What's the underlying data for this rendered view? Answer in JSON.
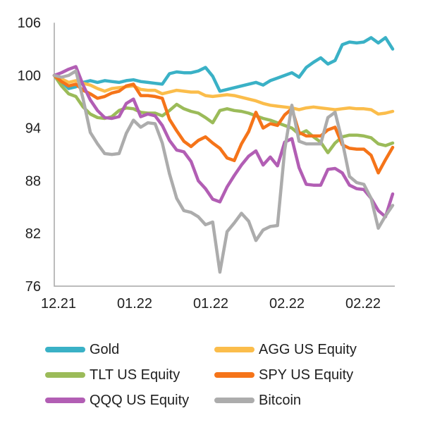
{
  "chart_data": {
    "type": "line",
    "title": "",
    "xlabel": "",
    "ylabel": "",
    "grid": false,
    "legend_position": "bottom",
    "y_axis": {
      "min": 76,
      "max": 106,
      "ticks": [
        106,
        100,
        94,
        88,
        82,
        76
      ]
    },
    "x_axis": {
      "tick_labels": [
        "12.21",
        "01.22",
        "01.22",
        "02.22",
        "02.22"
      ]
    },
    "series": [
      {
        "name": "Gold",
        "color": "#3ab1c6",
        "values": [
          100,
          99.3,
          98.5,
          98.7,
          99.2,
          99.4,
          99.2,
          99.4,
          99.3,
          99.2,
          99.4,
          99.5,
          99.3,
          99.2,
          99.1,
          99.0,
          100.2,
          100.4,
          100.3,
          100.3,
          100.5,
          100.9,
          99.9,
          98.2,
          98.4,
          98.6,
          98.8,
          99.0,
          99.2,
          98.9,
          99.4,
          99.7,
          100.0,
          100.3,
          99.8,
          100.9,
          101.5,
          102.0,
          101.3,
          101.7,
          103.5,
          103.8,
          103.7,
          103.8,
          104.3,
          103.7,
          104.3,
          103.0
        ]
      },
      {
        "name": "AGG US Equity",
        "color": "#fbbd4b",
        "values": [
          100,
          99.6,
          99.2,
          99.4,
          99.1,
          98.9,
          98.5,
          98.2,
          98.5,
          98.6,
          98.7,
          98.8,
          98.4,
          98.3,
          98.3,
          97.9,
          98.1,
          98.3,
          98.2,
          98.1,
          98.1,
          97.7,
          97.6,
          97.7,
          97.8,
          97.7,
          97.5,
          97.3,
          97.1,
          96.8,
          96.6,
          96.5,
          96.4,
          96.3,
          96.1,
          96.3,
          96.4,
          96.3,
          96.2,
          96.1,
          96.2,
          96.3,
          96.2,
          96.2,
          96.1,
          95.6,
          95.7,
          95.9
        ]
      },
      {
        "name": "TLT US Equity",
        "color": "#9bbb59",
        "values": [
          100,
          98.8,
          97.9,
          97.6,
          96.4,
          95.6,
          95.2,
          95.1,
          95.3,
          96.0,
          96.3,
          96.2,
          95.8,
          95.7,
          95.7,
          95.4,
          96.0,
          96.7,
          96.2,
          95.9,
          95.7,
          95.2,
          94.6,
          96.0,
          96.2,
          96.0,
          95.9,
          95.7,
          95.4,
          95.1,
          94.9,
          94.6,
          94.3,
          94.0,
          93.3,
          93.7,
          93.0,
          92.4,
          91.2,
          92.3,
          93.0,
          93.2,
          93.2,
          93.1,
          92.9,
          92.2,
          92.0,
          92.3
        ]
      },
      {
        "name": "SPY US Equity",
        "color": "#f57419",
        "values": [
          100,
          99.3,
          98.8,
          99.0,
          98.3,
          97.9,
          97.4,
          97.6,
          98.0,
          98.2,
          98.8,
          99.0,
          97.7,
          97.7,
          97.6,
          97.4,
          95.0,
          93.7,
          92.5,
          91.9,
          92.6,
          93.0,
          92.3,
          91.7,
          90.6,
          90.3,
          92.2,
          93.6,
          95.8,
          94.0,
          94.5,
          94.3,
          95.5,
          96.2,
          93.5,
          93.1,
          93.1,
          93.1,
          93.8,
          94.1,
          92.1,
          91.7,
          91.6,
          91.6,
          90.9,
          88.9,
          90.4,
          91.8
        ]
      },
      {
        "name": "QQQ US Equity",
        "color": "#b25eb4",
        "values": [
          100,
          100.3,
          100.7,
          101.0,
          98.9,
          97.2,
          96.0,
          95.2,
          95.1,
          95.3,
          96.8,
          97.3,
          95.3,
          95.6,
          95.4,
          94.3,
          92.6,
          91.5,
          91.3,
          90.2,
          88.0,
          87.1,
          85.9,
          85.6,
          87.3,
          88.6,
          89.8,
          90.8,
          91.4,
          89.8,
          90.7,
          89.7,
          92.4,
          92.8,
          89.5,
          87.6,
          87.5,
          87.5,
          89.3,
          89.4,
          88.9,
          87.5,
          87.1,
          87.0,
          86.0,
          84.6,
          83.9,
          86.5
        ]
      },
      {
        "name": "Bitcoin",
        "color": "#acacac",
        "values": [
          100,
          99.8,
          100.0,
          100.5,
          97.3,
          93.5,
          92.2,
          91.1,
          91.0,
          91.1,
          93.4,
          94.9,
          94.1,
          94.6,
          94.5,
          92.3,
          88.8,
          86.0,
          84.6,
          84.4,
          83.9,
          83.0,
          83.3,
          77.6,
          82.2,
          83.2,
          84.3,
          83.4,
          81.2,
          82.4,
          82.8,
          82.9,
          91.5,
          96.6,
          92.5,
          92.2,
          92.2,
          92.2,
          95.2,
          95.8,
          92.5,
          88.5,
          87.8,
          87.6,
          86.0,
          82.6,
          84.0,
          85.2
        ]
      }
    ]
  }
}
